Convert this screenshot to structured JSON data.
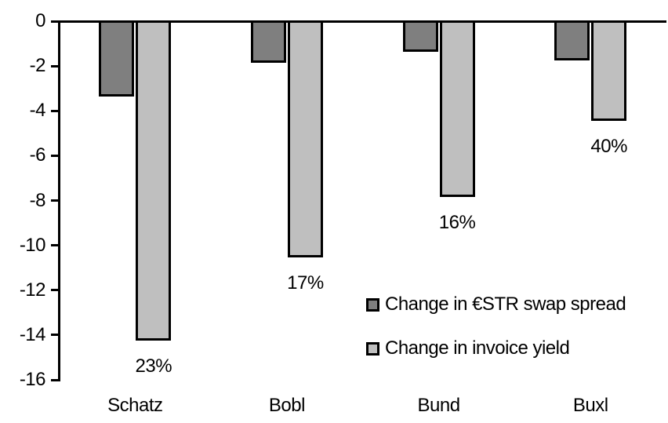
{
  "chart_data": {
    "type": "bar",
    "title": "",
    "categories": [
      "Schatz",
      "Bobl",
      "Bund",
      "Buxl"
    ],
    "series": [
      {
        "name": "Change in €STR swap spread",
        "color": "#7f7f7f",
        "values": [
          -3.3,
          -1.8,
          -1.3,
          -1.7
        ]
      },
      {
        "name": "Change in invoice yield",
        "color": "#bfbfbf",
        "values": [
          -14.2,
          -10.5,
          -7.8,
          -4.4
        ],
        "point_labels": [
          "23%",
          "17%",
          "16%",
          "40%"
        ]
      }
    ],
    "xlabel": "",
    "ylabel": "",
    "ylim": [
      -16,
      0
    ],
    "yticks": [
      0,
      -2,
      -4,
      -6,
      -8,
      -10,
      -12,
      -14,
      -16
    ],
    "grid": false,
    "legend_position": "inside-lower-right",
    "bar_outline_color": "#000000",
    "axis_color": "#000000",
    "background": "#ffffff"
  }
}
